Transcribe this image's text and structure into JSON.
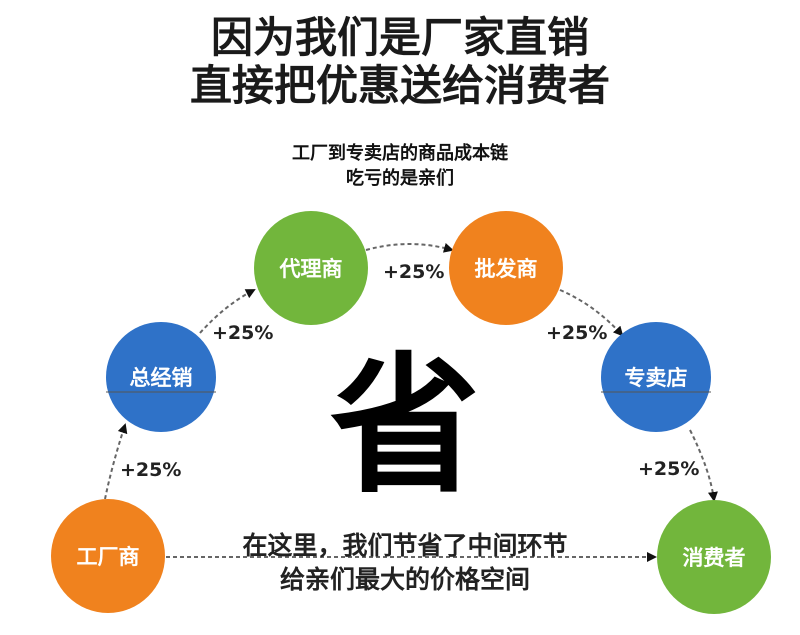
{
  "title": {
    "line1": "因为我们是厂家直销",
    "line2": "直接把优惠送给消费者"
  },
  "subtitle": {
    "line1": "工厂到专卖店的商品成本链",
    "line2": "吃亏的是亲们"
  },
  "center_char": "省",
  "nodes": [
    {
      "label": "工厂商",
      "color": "#f0821e"
    },
    {
      "label": "总经销",
      "color": "#2f72c8"
    },
    {
      "label": "代理商",
      "color": "#72b63c"
    },
    {
      "label": "批发商",
      "color": "#f0821e"
    },
    {
      "label": "专卖店",
      "color": "#2f72c8"
    },
    {
      "label": "消费者",
      "color": "#72b63c"
    }
  ],
  "markups": [
    "+25%",
    "+25%",
    "+25%",
    "+25%",
    "+25%"
  ],
  "bottom": {
    "line1": "在这里，我们节省了中间环节",
    "line2": "给亲们最大的价格空间"
  }
}
